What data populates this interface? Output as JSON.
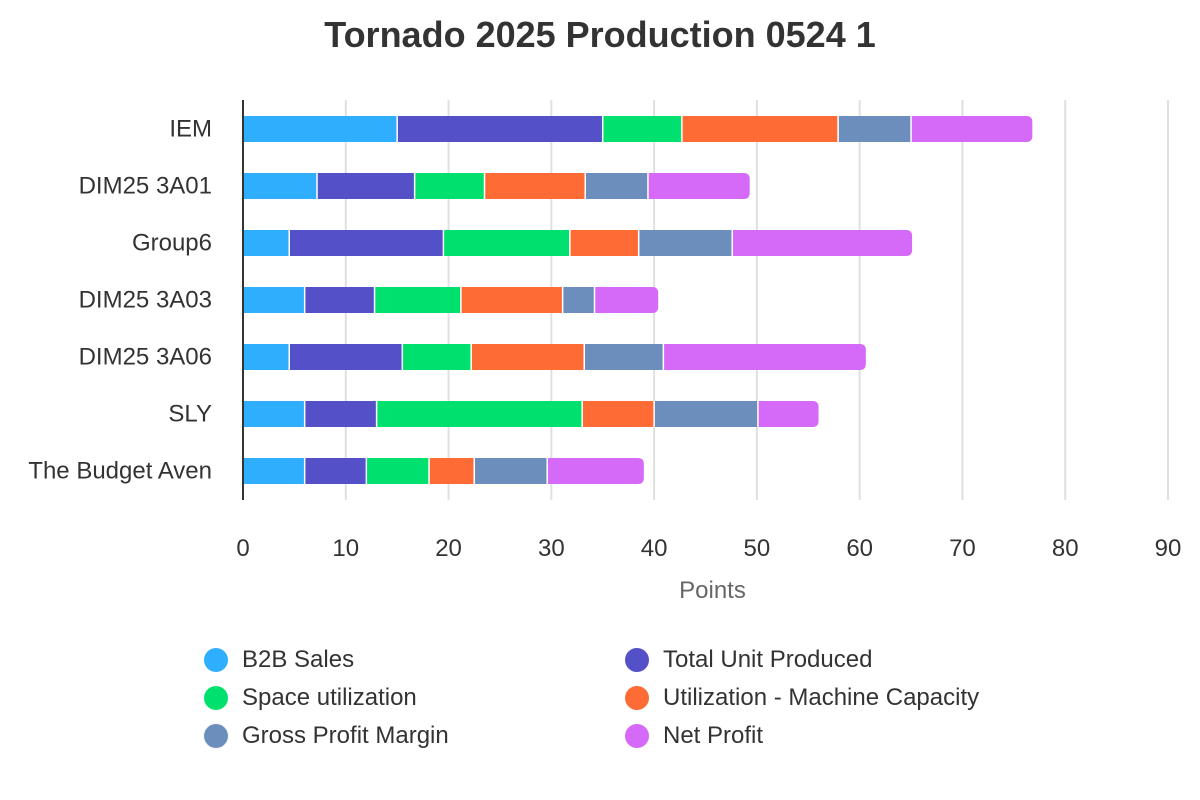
{
  "chart_data": {
    "type": "bar",
    "orientation": "horizontal",
    "stacked": true,
    "title": "Tornado 2025 Production 0524 1",
    "xlabel": "Points",
    "ylabel": "",
    "xlim": [
      0,
      90
    ],
    "xticks": [
      0,
      10,
      20,
      30,
      40,
      50,
      60,
      70,
      80,
      90
    ],
    "grid": true,
    "legend_position": "bottom",
    "categories": [
      "IEM",
      "DIM25 3A01",
      "Group6",
      "DIM25 3A03",
      "DIM25 3A06",
      "SLY",
      "The Budget Aven"
    ],
    "series": [
      {
        "name": "B2B Sales",
        "color": "#2eaefc",
        "values": [
          15,
          7.2,
          4.5,
          6,
          4.5,
          6,
          6
        ]
      },
      {
        "name": "Total Unit Produced",
        "color": "#5450c8",
        "values": [
          20,
          9.5,
          15,
          6.8,
          11,
          7,
          6
        ]
      },
      {
        "name": "Space utilization",
        "color": "#00e06f",
        "values": [
          7.7,
          6.8,
          12.3,
          8.4,
          6.7,
          20,
          6.1
        ]
      },
      {
        "name": "Utilization - Machine Capacity",
        "color": "#ff6b35",
        "values": [
          15.2,
          9.8,
          6.7,
          9.9,
          11,
          7,
          4.4
        ]
      },
      {
        "name": "Gross Profit Margin",
        "color": "#6b8ebd",
        "values": [
          7.1,
          6.1,
          9.1,
          3.1,
          7.7,
          10.1,
          7.1
        ]
      },
      {
        "name": "Net Profit",
        "color": "#d569f8",
        "values": [
          11.8,
          9.9,
          17.5,
          6.2,
          19.7,
          5.9,
          9.4
        ]
      }
    ]
  }
}
